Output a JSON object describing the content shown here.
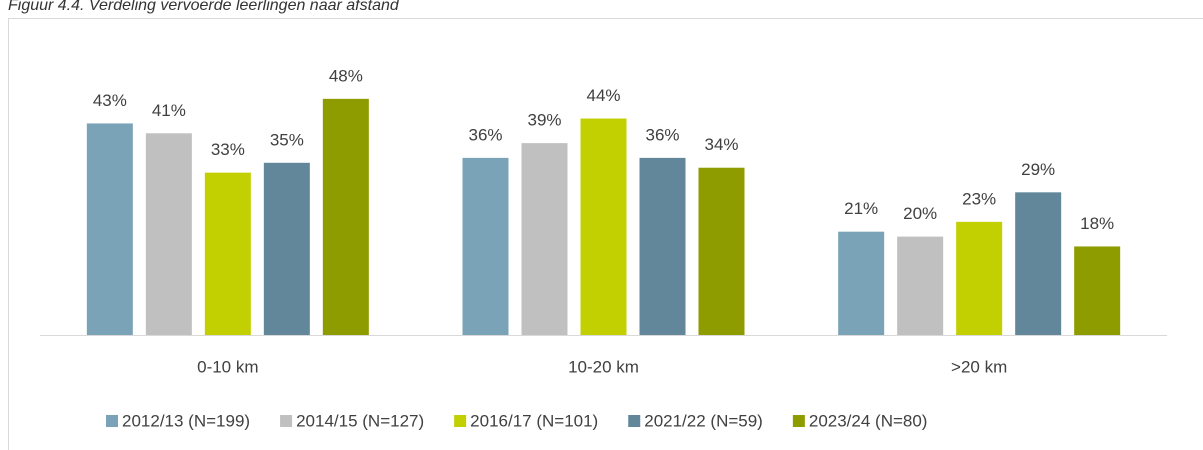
{
  "chart_data": {
    "type": "bar",
    "title": "Figuur 4.4. Verdeling vervoerde leerlingen naar afstand",
    "categories": [
      "0-10 km",
      "10-20 km",
      ">20 km"
    ],
    "series": [
      {
        "name": "2012/13 (N=199)",
        "color": "#7ba3b8",
        "values": [
          43,
          36,
          21
        ],
        "value_labels": [
          "43%",
          "36%",
          "21%"
        ]
      },
      {
        "name": "2014/15 (N=127)",
        "color": "#c0c0c0",
        "values": [
          41,
          39,
          20
        ],
        "value_labels": [
          "41%",
          "39%",
          "20%"
        ]
      },
      {
        "name": "2016/17 (N=101)",
        "color": "#c2cf00",
        "values": [
          33,
          44,
          23
        ],
        "value_labels": [
          "33%",
          "44%",
          "23%"
        ]
      },
      {
        "name": "2021/22 (N=59)",
        "color": "#62879a",
        "values": [
          35,
          36,
          29
        ],
        "value_labels": [
          "35%",
          "36%",
          "29%"
        ]
      },
      {
        "name": "2023/24 (N=80)",
        "color": "#8f9c00",
        "values": [
          48,
          34,
          18
        ],
        "value_labels": [
          "48%",
          "34%",
          "18%"
        ]
      }
    ],
    "legend": "bottom"
  }
}
